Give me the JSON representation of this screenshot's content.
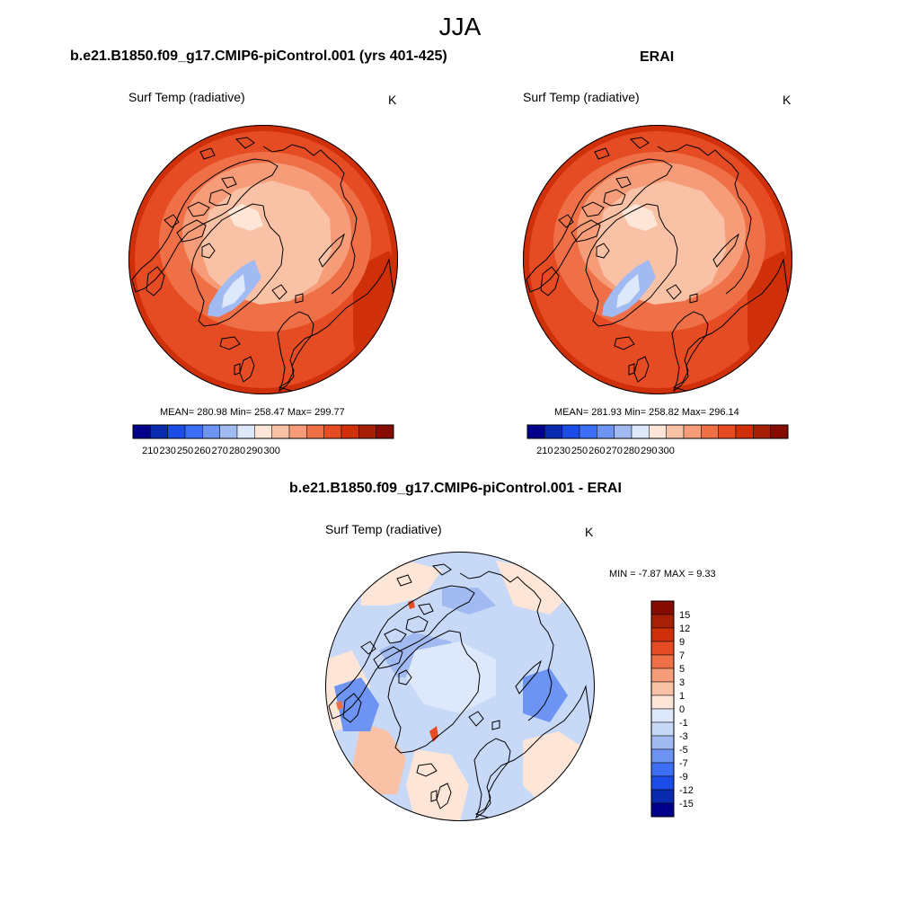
{
  "figure": {
    "title": "JJA"
  },
  "colors": {
    "abs_levels": [
      "#00008b",
      "#0a2bb0",
      "#1c4ce8",
      "#3d6ef6",
      "#6d93f3",
      "#a2baf2",
      "#dde8fb",
      "#fde6d8",
      "#f9c2a6",
      "#f69c78",
      "#ef7047",
      "#e54c23",
      "#cf3009",
      "#a72006",
      "#850c00"
    ],
    "diff_levels": [
      "#00008b",
      "#0a2bb0",
      "#1c4ce8",
      "#3d6ef6",
      "#6d93f3",
      "#a2baf2",
      "#c8d8f7",
      "#dde8fb",
      "#fde6d8",
      "#f9c2a6",
      "#f69c78",
      "#ef7047",
      "#e54c23",
      "#cf3009",
      "#a72006",
      "#850c00"
    ],
    "land_outline": "#000000"
  },
  "chart_data": [
    {
      "type": "heatmap",
      "projection": "north polar stereographic",
      "title": "b.e21.B1850.f09_g17.CMIP6-piControl.001 (yrs 401-425)",
      "variable": "Surf Temp (radiative)",
      "units": "K",
      "stats": {
        "mean": 280.98,
        "min": 258.47,
        "max": 299.77
      },
      "stats_text": "MEAN= 280.98  Min= 258.47  Max= 299.77",
      "colorbar": {
        "orientation": "horizontal",
        "tick_labels": [
          "210",
          "230",
          "250",
          "260",
          "270",
          "280",
          "290",
          "300"
        ]
      }
    },
    {
      "type": "heatmap",
      "projection": "north polar stereographic",
      "title": "ERAI",
      "variable": "Surf Temp (radiative)",
      "units": "K",
      "stats": {
        "mean": 281.93,
        "min": 258.82,
        "max": 296.14
      },
      "stats_text": "MEAN= 281.93  Min= 258.82  Max= 296.14",
      "colorbar": {
        "orientation": "horizontal",
        "tick_labels": [
          "210",
          "230",
          "250",
          "260",
          "270",
          "280",
          "290",
          "300"
        ]
      }
    },
    {
      "type": "heatmap",
      "projection": "north polar stereographic",
      "title": "b.e21.B1850.f09_g17.CMIP6-piControl.001 - ERAI",
      "variable": "Surf Temp (radiative)",
      "units": "K",
      "stats": {
        "min": -7.87,
        "max": 9.33
      },
      "stats_text": "MIN =  -7.87 MAX =   9.33",
      "colorbar": {
        "orientation": "vertical",
        "tick_labels": [
          "15",
          "12",
          "9",
          "7",
          "5",
          "3",
          "1",
          "0",
          "-1",
          "-3",
          "-5",
          "-7",
          "-9",
          "-12",
          "-15"
        ]
      }
    }
  ]
}
